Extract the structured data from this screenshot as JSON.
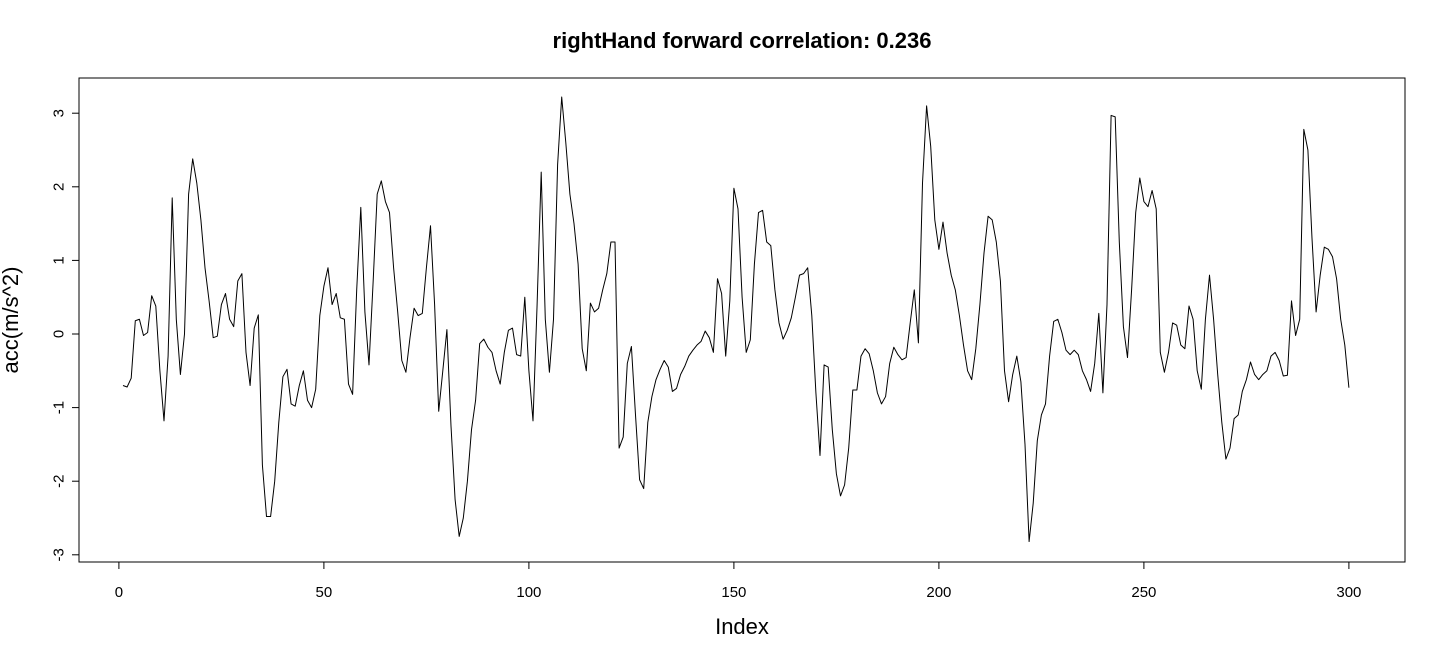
{
  "chart_data": {
    "type": "line",
    "title": "rightHand forward correlation: 0.236",
    "xlabel": "Index",
    "ylabel": "acc(m/s^2)",
    "xlim": [
      1,
      301
    ],
    "ylim": [
      -3,
      3.25
    ],
    "x_ticks": [
      0,
      50,
      100,
      150,
      200,
      250,
      300
    ],
    "y_ticks": [
      -3,
      -2,
      -1,
      0,
      1,
      2,
      3
    ],
    "grid": false,
    "legend": "none",
    "line_color": "#000000",
    "series": [
      {
        "x_start": 1,
        "x_step": 1,
        "values": [
          -0.7,
          -0.72,
          -0.6,
          0.18,
          0.2,
          -0.02,
          0.02,
          0.52,
          0.38,
          -0.5,
          -1.18,
          -0.3,
          1.85,
          0.2,
          -0.55,
          0.0,
          1.9,
          2.38,
          2.05,
          1.55,
          0.9,
          0.45,
          -0.05,
          -0.03,
          0.4,
          0.55,
          0.2,
          0.1,
          0.72,
          0.82,
          -0.25,
          -0.7,
          0.08,
          0.26,
          -1.78,
          -2.48,
          -2.48,
          -2.0,
          -1.2,
          -0.58,
          -0.48,
          -0.95,
          -0.98,
          -0.7,
          -0.5,
          -0.9,
          -1.0,
          -0.75,
          0.25,
          0.65,
          0.9,
          0.4,
          0.55,
          0.22,
          0.2,
          -0.68,
          -0.82,
          0.6,
          1.72,
          0.3,
          -0.42,
          0.7,
          1.9,
          2.08,
          1.8,
          1.65,
          0.9,
          0.3,
          -0.36,
          -0.52,
          -0.05,
          0.35,
          0.25,
          0.28,
          0.9,
          1.47,
          0.4,
          -1.05,
          -0.5,
          0.06,
          -1.25,
          -2.25,
          -2.75,
          -2.5,
          -2.0,
          -1.3,
          -0.9,
          -0.13,
          -0.07,
          -0.18,
          -0.25,
          -0.5,
          -0.68,
          -0.25,
          0.05,
          0.08,
          -0.28,
          -0.3,
          0.5,
          -0.5,
          -1.18,
          0.4,
          2.2,
          0.2,
          -0.52,
          0.2,
          2.3,
          3.22,
          2.6,
          1.9,
          1.5,
          0.95,
          -0.2,
          -0.5,
          0.42,
          0.3,
          0.35,
          0.6,
          0.82,
          1.25,
          1.25,
          -1.55,
          -1.4,
          -0.4,
          -0.17,
          -1.1,
          -1.98,
          -2.1,
          -1.2,
          -0.85,
          -0.62,
          -0.48,
          -0.36,
          -0.45,
          -0.78,
          -0.74,
          -0.55,
          -0.44,
          -0.3,
          -0.22,
          -0.15,
          -0.1,
          0.04,
          -0.05,
          -0.25,
          0.75,
          0.55,
          -0.3,
          0.45,
          1.98,
          1.7,
          0.5,
          -0.25,
          -0.08,
          0.95,
          1.65,
          1.68,
          1.25,
          1.2,
          0.6,
          0.15,
          -0.07,
          0.05,
          0.22,
          0.5,
          0.8,
          0.82,
          0.9,
          0.25,
          -0.8,
          -1.65,
          -0.42,
          -0.45,
          -1.3,
          -1.9,
          -2.2,
          -2.05,
          -1.55,
          -0.76,
          -0.76,
          -0.3,
          -0.2,
          -0.27,
          -0.5,
          -0.8,
          -0.95,
          -0.85,
          -0.4,
          -0.18,
          -0.28,
          -0.35,
          -0.32,
          0.15,
          0.6,
          -0.12,
          2.05,
          3.1,
          2.55,
          1.55,
          1.15,
          1.52,
          1.1,
          0.8,
          0.6,
          0.25,
          -0.15,
          -0.5,
          -0.62,
          -0.2,
          0.4,
          1.1,
          1.6,
          1.55,
          1.25,
          0.72,
          -0.5,
          -0.92,
          -0.55,
          -0.3,
          -0.65,
          -1.5,
          -2.82,
          -2.3,
          -1.45,
          -1.1,
          -0.95,
          -0.3,
          0.17,
          0.2,
          0.02,
          -0.22,
          -0.28,
          -0.22,
          -0.28,
          -0.5,
          -0.62,
          -0.78,
          -0.4,
          0.28,
          -0.8,
          0.4,
          2.97,
          2.95,
          1.25,
          0.1,
          -0.32,
          0.6,
          1.65,
          2.12,
          1.8,
          1.73,
          1.95,
          1.7,
          -0.25,
          -0.52,
          -0.25,
          0.15,
          0.12,
          -0.15,
          -0.2,
          0.38,
          0.2,
          -0.5,
          -0.75,
          0.2,
          0.8,
          0.2,
          -0.55,
          -1.2,
          -1.7,
          -1.55,
          -1.15,
          -1.1,
          -0.78,
          -0.62,
          -0.38,
          -0.55,
          -0.62,
          -0.55,
          -0.5,
          -0.3,
          -0.25,
          -0.36,
          -0.57,
          -0.56,
          0.45,
          -0.02,
          0.2,
          2.78,
          2.5,
          1.3,
          0.3,
          0.8,
          1.18,
          1.15,
          1.05,
          0.75,
          0.2,
          -0.15,
          -0.73
        ]
      }
    ]
  }
}
